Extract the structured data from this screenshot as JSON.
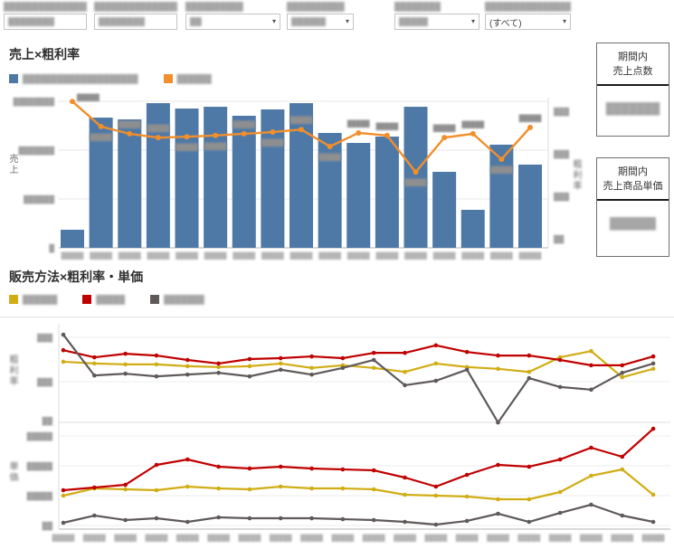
{
  "filters": [
    {
      "label": "████████████████",
      "value": "████████",
      "type": "input"
    },
    {
      "label": "███████████████",
      "value": "████████",
      "type": "input"
    },
    {
      "label": "██████████",
      "value": "██",
      "type": "select"
    },
    {
      "label": "██████████",
      "value": "██████",
      "type": "select"
    },
    {
      "label": "████████",
      "value": "█████",
      "type": "select"
    },
    {
      "label": "████████████████",
      "value": "(すべて)",
      "type": "select"
    }
  ],
  "kpi_boxes": [
    {
      "title_line1": "期間内",
      "title_line2": "売上点数",
      "value": "███████"
    },
    {
      "title_line1": "期間内",
      "title_line2": "売上商品単価",
      "value": "██████"
    }
  ],
  "chart_data": [
    {
      "type": "bar+line",
      "title": "売上×粗利率",
      "note": "axis tick labels, category labels and data labels are blurred/redacted in the source image; numeric values are estimated from pixel geometry",
      "y_left_label": "売上",
      "y_right_label": "粗利率",
      "ylim_left": [
        0,
        1500000
      ],
      "ylim_right": [
        0,
        33
      ],
      "y_left_ticks": [
        "████████",
        "███████",
        "██████",
        "█"
      ],
      "y_right_ticks": [
        "███",
        "███",
        "███",
        "██"
      ],
      "categories": [
        "█████",
        "█████",
        "█████",
        "█████",
        "█████",
        "█████",
        "█████",
        "█████",
        "█████",
        "█████",
        "█████",
        "█████",
        "█████",
        "█████",
        "█████",
        "█████",
        "█████"
      ],
      "bar_series": {
        "name": "████████████████████",
        "color": "#4e79a7",
        "values": [
          185000,
          1333000,
          1315000,
          1481000,
          1426000,
          1444000,
          1352000,
          1417000,
          1481000,
          1176000,
          1074000,
          1139000,
          1444000,
          778000,
          389000,
          1056000,
          852000
        ]
      },
      "line_series": {
        "name": "██████",
        "color": "#f28e2b",
        "values": [
          32.3,
          26.4,
          24.7,
          23.8,
          24.0,
          24.3,
          24.7,
          25.1,
          25.7,
          21.7,
          24.9,
          24.3,
          15.7,
          23.8,
          24.7,
          18.7,
          26.2
        ],
        "point_labels": [
          "█████",
          "█████",
          "█████",
          "█████",
          "█████",
          "█████",
          "█████",
          "█████",
          "█████",
          "█████",
          "█████",
          "█████",
          "█████",
          "█████",
          "█████",
          "█████",
          "█████"
        ],
        "label_pos": [
          "above-right",
          "below",
          "above",
          "above",
          "below",
          "below",
          "above",
          "below",
          "above",
          "below",
          "above",
          "above",
          "below",
          "above",
          "above",
          "below",
          "above"
        ]
      }
    },
    {
      "type": "line",
      "title": "販売方法×粗利率・単価",
      "panel": "粗利率 (upper panel)",
      "y_label": "粗利率",
      "ylim": [
        20,
        42
      ],
      "y_ticks": [
        "███",
        "███",
        "██"
      ],
      "categories": [
        "█████",
        "█████",
        "█████",
        "█████",
        "█████",
        "█████",
        "█████",
        "█████",
        "█████",
        "█████",
        "█████",
        "█████",
        "█████",
        "█████",
        "█████",
        "█████",
        "█████",
        "█████",
        "█████",
        "█████"
      ],
      "series": [
        {
          "name": "██████",
          "color": "#d1ad15",
          "values": [
            34.5,
            34.1,
            33.9,
            33.9,
            33.5,
            33.3,
            33.5,
            34.1,
            33.1,
            33.7,
            33.1,
            32.2,
            34.1,
            33.3,
            32.9,
            32.2,
            35.5,
            36.9,
            31.0,
            32.9
          ]
        },
        {
          "name": "█████",
          "color": "#c00000",
          "values": [
            37.1,
            35.5,
            36.3,
            35.9,
            34.9,
            34.1,
            35.1,
            35.3,
            35.7,
            35.3,
            36.5,
            36.5,
            38.2,
            36.7,
            35.9,
            35.9,
            34.9,
            33.7,
            33.7,
            35.7
          ]
        },
        {
          "name": "███████",
          "color": "#5f5a59",
          "values": [
            40.6,
            31.4,
            31.8,
            31.2,
            31.6,
            32.0,
            31.2,
            32.7,
            31.6,
            33.1,
            34.9,
            29.2,
            30.2,
            32.7,
            20.8,
            30.8,
            28.8,
            28.2,
            32.0,
            34.1
          ]
        }
      ]
    },
    {
      "type": "line",
      "title": "販売方法×粗利率・単価",
      "panel": "単価 (lower panel)",
      "y_label": "単価",
      "ylim": [
        0,
        3500
      ],
      "y_ticks": [
        "█████",
        "█████",
        "█████",
        "██"
      ],
      "categories": [
        "█████",
        "█████",
        "█████",
        "█████",
        "█████",
        "█████",
        "█████",
        "█████",
        "█████",
        "█████",
        "█████",
        "█████",
        "█████",
        "█████",
        "█████",
        "█████",
        "█████",
        "█████",
        "█████",
        "█████"
      ],
      "series": [
        {
          "name": "██████",
          "color": "#d1ad15",
          "values": [
            1000,
            1242,
            1212,
            1182,
            1303,
            1242,
            1212,
            1303,
            1242,
            1242,
            1212,
            1030,
            1000,
            970,
            879,
            879,
            1121,
            1667,
            1879,
            1030
          ]
        },
        {
          "name": "█████",
          "color": "#c00000",
          "values": [
            1182,
            1273,
            1364,
            2030,
            2212,
            1970,
            1909,
            1970,
            1909,
            1879,
            1848,
            1606,
            1303,
            1697,
            2030,
            1970,
            2212,
            2606,
            2303,
            3242
          ]
        },
        {
          "name": "███████",
          "color": "#5f5a59",
          "values": [
            91,
            333,
            182,
            242,
            121,
            273,
            242,
            242,
            242,
            212,
            182,
            121,
            30,
            152,
            394,
            121,
            424,
            697,
            333,
            121
          ]
        }
      ]
    }
  ]
}
